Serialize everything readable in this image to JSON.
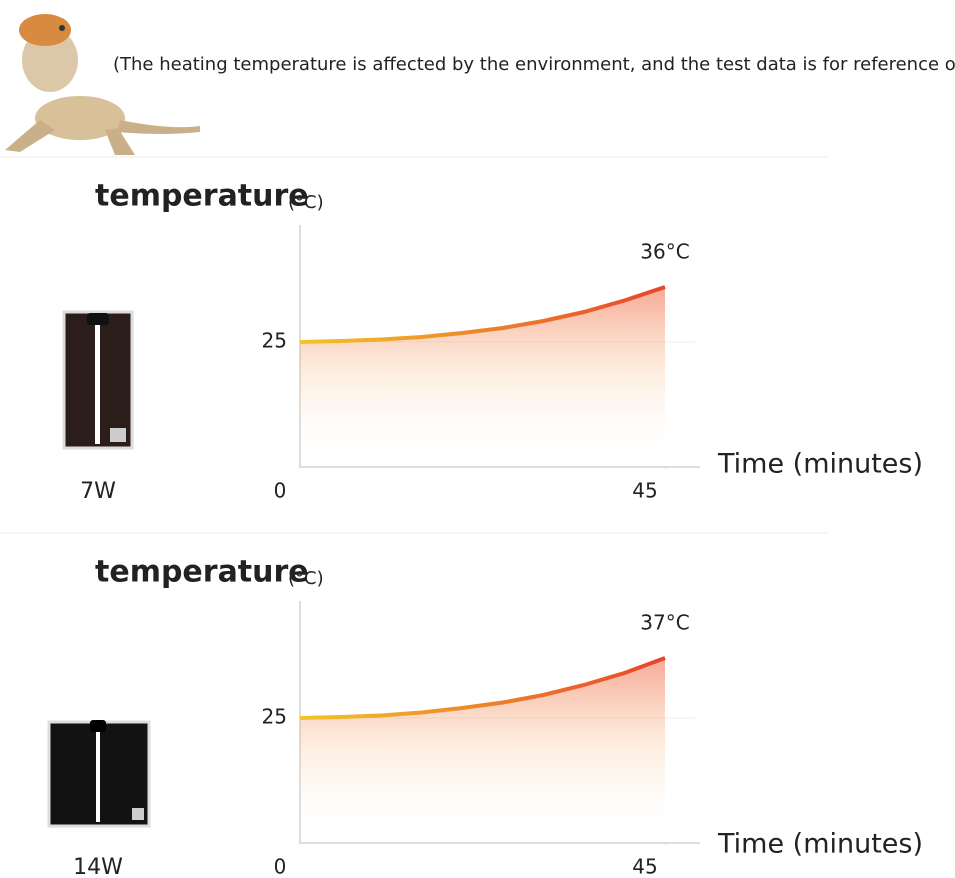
{
  "note": "(The heating temperature is affected by the environment, and the test data is for reference only. )",
  "chart_data": [
    {
      "type": "line",
      "label": "7W",
      "y_label": "temperature",
      "y_unit": "(°C)",
      "x_label": "Time (minutes)",
      "x": [
        0,
        5,
        10,
        15,
        20,
        25,
        30,
        35,
        40,
        45
      ],
      "values": [
        25,
        25.2,
        25.5,
        26,
        26.8,
        27.8,
        29.2,
        31,
        33.3,
        36
      ],
      "value_labels": [
        null,
        null,
        null,
        null,
        null,
        null,
        null,
        null,
        null,
        "36°C"
      ],
      "xlim": [
        0,
        45
      ],
      "ylim": [
        0,
        40
      ],
      "xticks": [
        0,
        45
      ],
      "yticks": [
        25
      ],
      "grid": true
    },
    {
      "type": "line",
      "label": "14W",
      "y_label": "temperature",
      "y_unit": "(°C)",
      "x_label": "Time (minutes)",
      "x": [
        0,
        5,
        10,
        15,
        20,
        25,
        30,
        35,
        40,
        45
      ],
      "values": [
        25,
        25.2,
        25.5,
        26.1,
        27,
        28.1,
        29.6,
        31.6,
        34,
        37
      ],
      "value_labels": [
        null,
        null,
        null,
        null,
        null,
        null,
        null,
        null,
        null,
        "37°C"
      ],
      "xlim": [
        0,
        45
      ],
      "ylim": [
        0,
        40
      ],
      "xticks": [
        0,
        45
      ],
      "yticks": [
        25
      ],
      "grid": true
    }
  ]
}
